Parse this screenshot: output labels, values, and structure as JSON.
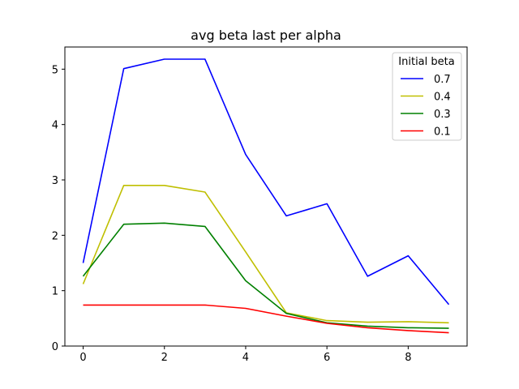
{
  "chart_data": {
    "type": "line",
    "title": "avg beta last per alpha",
    "xlabel": "",
    "ylabel": "",
    "x": [
      0,
      1,
      2,
      3,
      4,
      5,
      6,
      7,
      8,
      9
    ],
    "xlim": [
      -0.45,
      9.45
    ],
    "ylim": [
      0,
      5.4
    ],
    "xticks": [
      0,
      2,
      4,
      6,
      8
    ],
    "yticks": [
      0,
      1,
      2,
      3,
      4,
      5
    ],
    "grid": false,
    "legend": {
      "title": "Initial beta",
      "placement": "top-right"
    },
    "series": [
      {
        "name": "0.7",
        "color": "#0000ff",
        "values": [
          1.5,
          5.01,
          5.18,
          5.18,
          3.46,
          2.35,
          2.57,
          1.26,
          1.63,
          0.75
        ]
      },
      {
        "name": "0.4",
        "color": "#bfbf00",
        "values": [
          1.12,
          2.9,
          2.9,
          2.78,
          1.7,
          0.6,
          0.46,
          0.43,
          0.44,
          0.42
        ]
      },
      {
        "name": "0.3",
        "color": "#008000",
        "values": [
          1.26,
          2.2,
          2.22,
          2.16,
          1.18,
          0.59,
          0.42,
          0.36,
          0.33,
          0.32
        ]
      },
      {
        "name": "0.1",
        "color": "#ff0000",
        "values": [
          0.74,
          0.74,
          0.74,
          0.74,
          0.68,
          0.54,
          0.41,
          0.33,
          0.28,
          0.24
        ]
      }
    ]
  }
}
